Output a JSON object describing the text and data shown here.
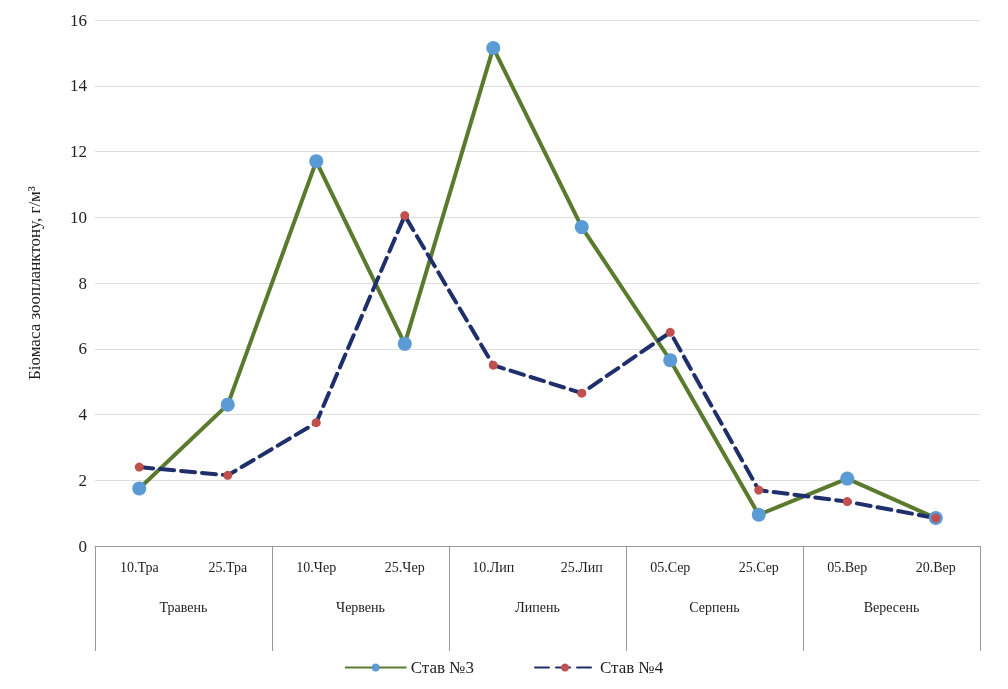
{
  "chart_data": {
    "type": "line",
    "ylabel": "Біомаса зоопланктону, г/м³",
    "categories": [
      "10.Тра",
      "25.Тра",
      "10.Чер",
      "25.Чер",
      "10.Лип",
      "25.Лип",
      "05.Сер",
      "25.Сер",
      "05.Вер",
      "20.Вер"
    ],
    "annotations": [
      "Травень",
      "Червень",
      "Липень",
      "Серпень",
      "Вересень"
    ],
    "series": [
      {
        "name": "Став №3",
        "color": "#5a7a2e",
        "line_style": "solid",
        "colors": [
          "#5b9bd5",
          "#5b9bd5",
          "#5b9bd5",
          "#5b9bd5",
          "#5b9bd5",
          "#5b9bd5",
          "#5b9bd5",
          "#5b9bd5",
          "#5b9bd5",
          "#5b9bd5"
        ],
        "values": [
          1.75,
          4.3,
          11.7,
          6.15,
          15.15,
          9.7,
          5.65,
          0.95,
          2.05,
          0.85
        ]
      },
      {
        "name": "Став №4",
        "color": "#1f2f6b",
        "line_style": "dashed",
        "colors": [
          "#c0504d",
          "#c0504d",
          "#c0504d",
          "#c0504d",
          "#c0504d",
          "#c0504d",
          "#c0504d",
          "#c0504d",
          "#c0504d",
          "#c0504d"
        ],
        "values": [
          2.4,
          2.15,
          3.75,
          10.05,
          5.5,
          4.65,
          6.5,
          1.7,
          1.35,
          0.85
        ]
      }
    ],
    "ylim": [
      0,
      16
    ],
    "yticks": [
      0,
      2,
      4,
      6,
      8,
      10,
      12,
      14,
      16
    ],
    "grid": "y",
    "legend": "bottom",
    "marker": "circle"
  }
}
